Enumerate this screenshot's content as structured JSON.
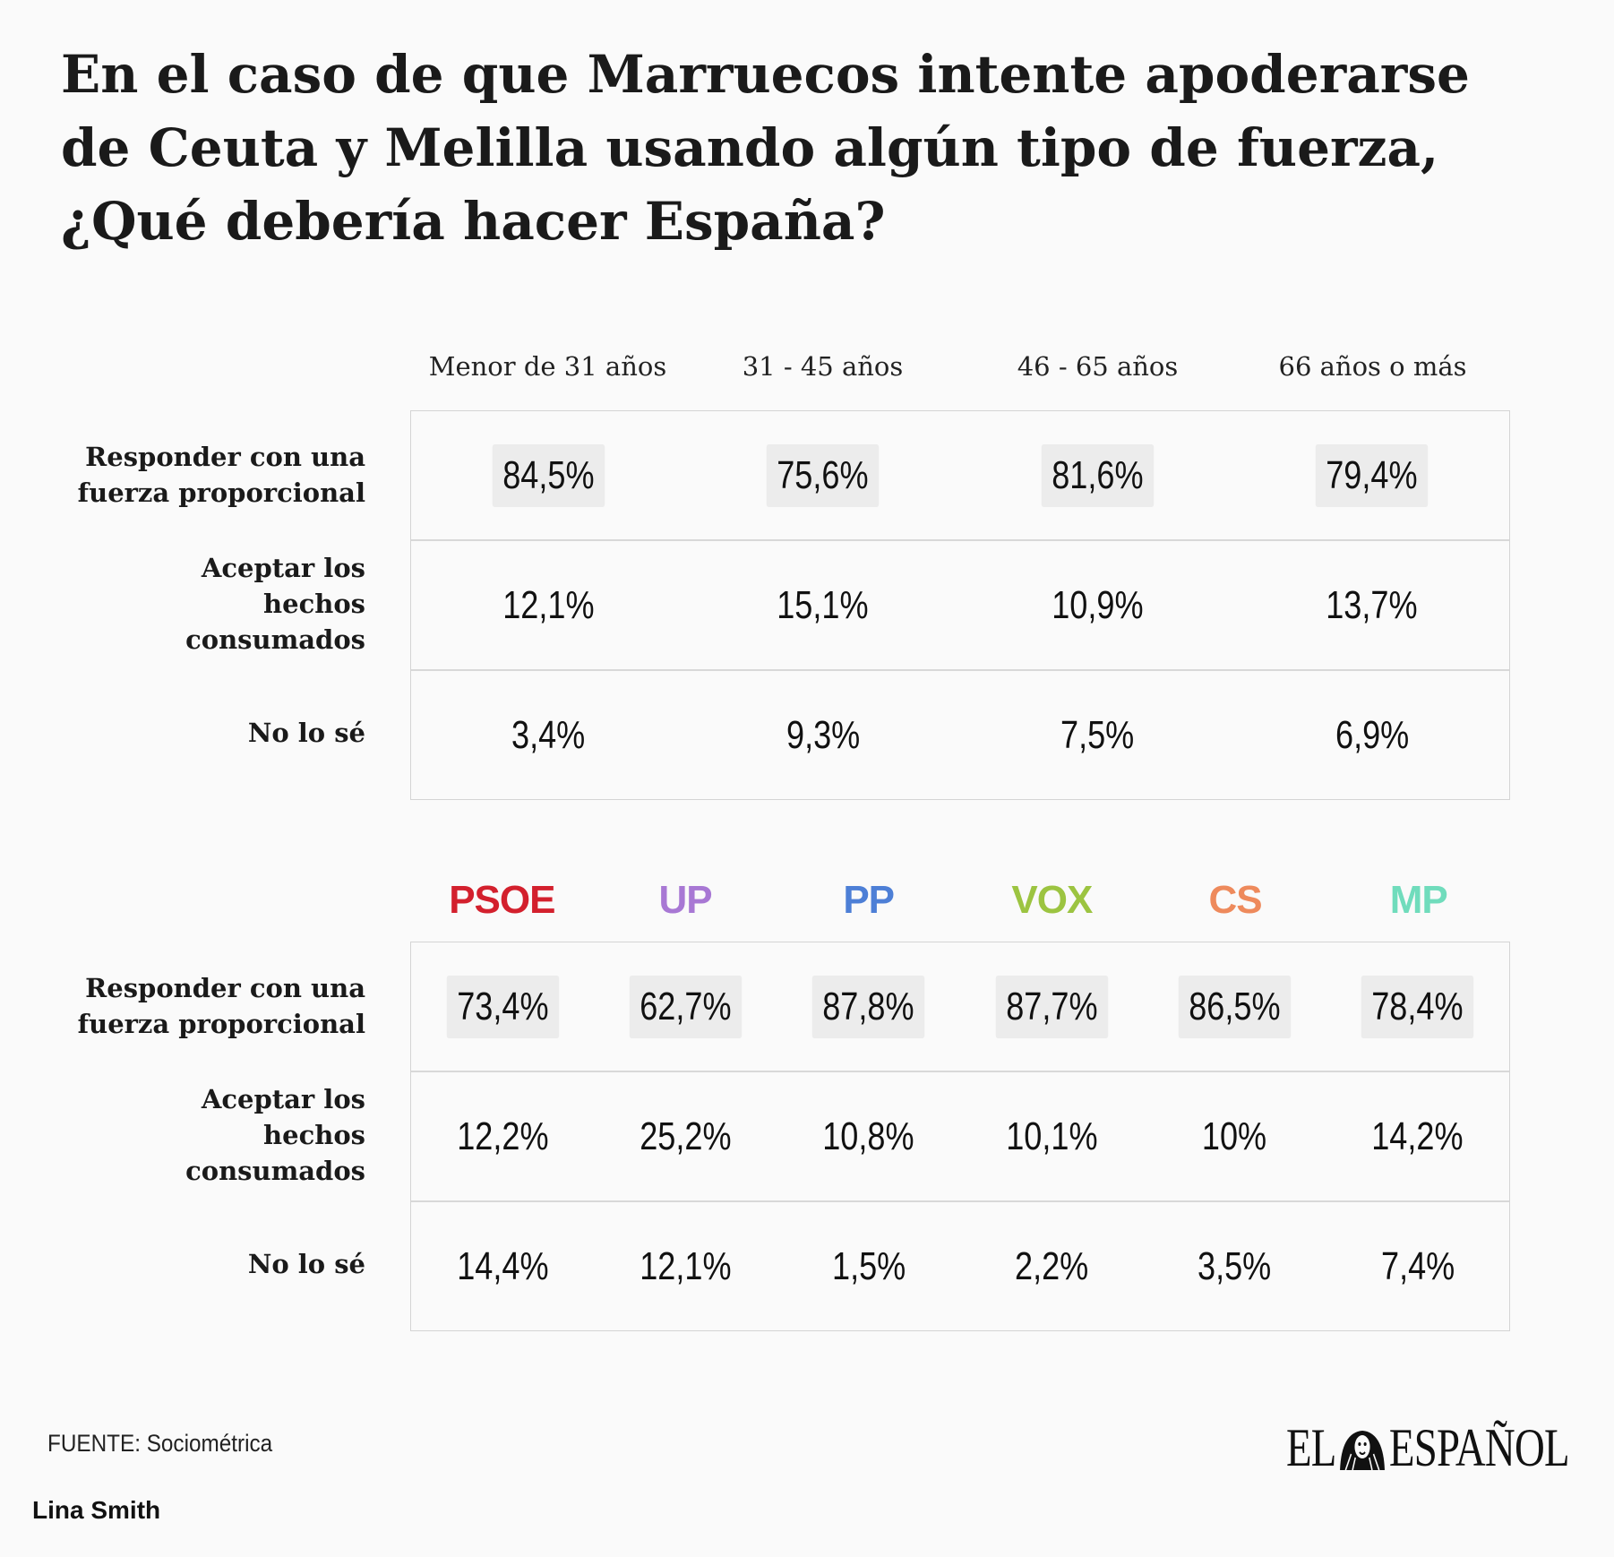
{
  "title": "En el caso de que Marruecos intente apoderarse de Ceuta y Melilla usando algún tipo de fuerza, ¿Qué debería hacer España?",
  "age_table": {
    "columns": [
      "Menor de 31 años",
      "31 - 45 años",
      "46 - 65 años",
      "66 años o más"
    ],
    "rows": [
      {
        "label": "Responder con una fuerza proporcional",
        "values": [
          "84,5%",
          "75,6%",
          "81,6%",
          "79,4%"
        ]
      },
      {
        "label": "Aceptar los hechos consumados",
        "values": [
          "12,1%",
          "15,1%",
          "10,9%",
          "13,7%"
        ]
      },
      {
        "label": "No lo sé",
        "values": [
          "3,4%",
          "9,3%",
          "7,5%",
          "6,9%"
        ]
      }
    ]
  },
  "party_table": {
    "columns": [
      {
        "name": "PSOE",
        "color": "#d3202d"
      },
      {
        "name": "UP",
        "color": "#a878d4"
      },
      {
        "name": "PP",
        "color": "#4d7fd6"
      },
      {
        "name": "VOX",
        "color": "#9cc441"
      },
      {
        "name": "CS",
        "color": "#ee8a5c"
      },
      {
        "name": "MP",
        "color": "#70dcbc"
      }
    ],
    "rows": [
      {
        "label": "Responder con una fuerza proporcional",
        "values": [
          "73,4%",
          "62,7%",
          "87,8%",
          "87,7%",
          "86,5%",
          "78,4%"
        ]
      },
      {
        "label": "Aceptar los hechos consumados",
        "values": [
          "12,2%",
          "25,2%",
          "10,8%",
          "10,1%",
          "10%",
          "14,2%"
        ]
      },
      {
        "label": "No lo sé",
        "values": [
          "14,4%",
          "12,1%",
          "1,5%",
          "2,2%",
          "3,5%",
          "7,4%"
        ]
      }
    ]
  },
  "footer": {
    "source": "FUENTE: Sociométrica",
    "author": "Lina Smith",
    "logo_left": "EL",
    "logo_right": "ESPAÑOL"
  }
}
